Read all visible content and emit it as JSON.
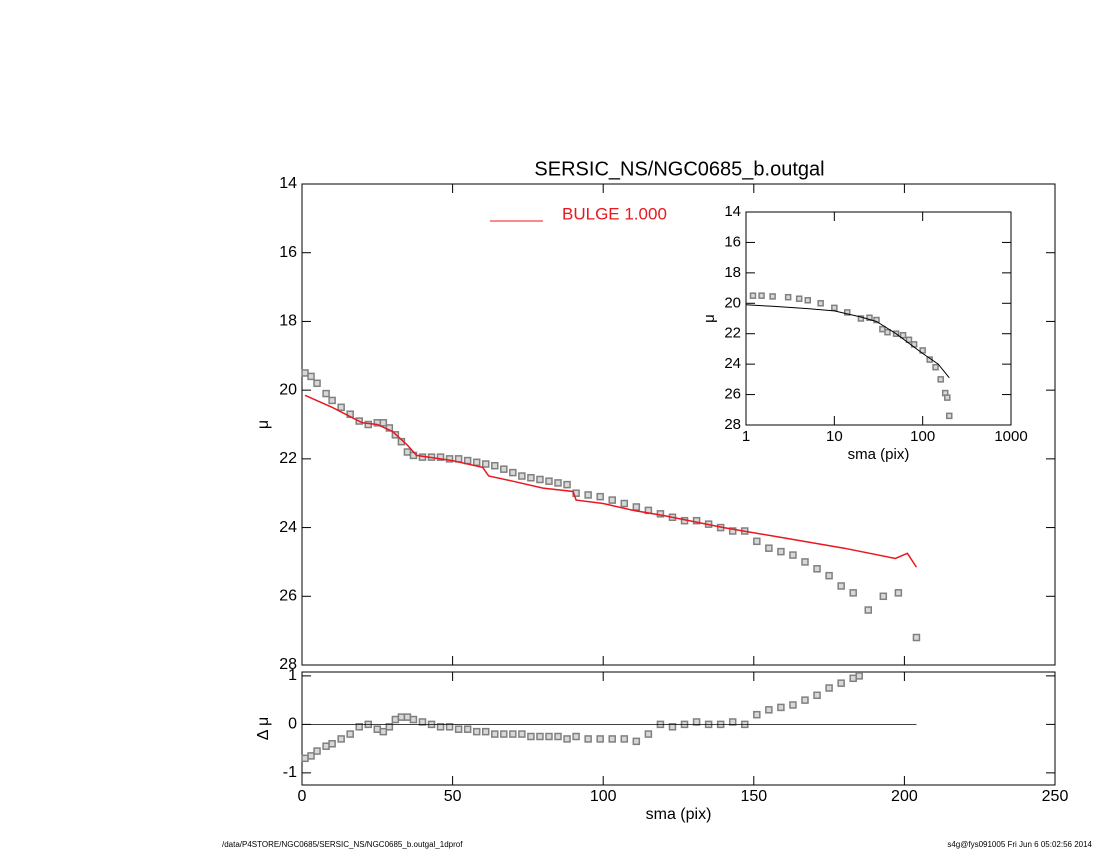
{
  "chart_data": [
    {
      "type": "line",
      "title": "SERSIC_NS/NGC0685_b.outgal",
      "ylabel": "μ",
      "xlim": [
        0,
        250
      ],
      "xticks": [
        0,
        50,
        100,
        150,
        200,
        250
      ],
      "show_xtick_labels": false,
      "ylim": [
        28,
        14
      ],
      "yticks": [
        14,
        16,
        18,
        20,
        22,
        24,
        26,
        28
      ],
      "legend": "top",
      "series": [
        {
          "name": null,
          "mode": "markers",
          "color": "#808080",
          "x": [
            1,
            3,
            5,
            8,
            10,
            13,
            16,
            19,
            22,
            25,
            27,
            29,
            31,
            33,
            35,
            37,
            40,
            43,
            46,
            49,
            52,
            55,
            58,
            61,
            64,
            67,
            70,
            73,
            76,
            79,
            82,
            85,
            88,
            91,
            95,
            99,
            103,
            107,
            111,
            115,
            119,
            123,
            127,
            131,
            135,
            139,
            143,
            147,
            151,
            155,
            159,
            163,
            167,
            171,
            175,
            179,
            183,
            188,
            193,
            198,
            204
          ],
          "values": [
            19.5,
            19.6,
            19.8,
            20.1,
            20.3,
            20.5,
            20.7,
            20.9,
            21.0,
            20.95,
            20.95,
            21.1,
            21.3,
            21.5,
            21.8,
            21.9,
            21.95,
            21.95,
            21.95,
            22.0,
            22.0,
            22.05,
            22.1,
            22.15,
            22.2,
            22.3,
            22.4,
            22.5,
            22.55,
            22.6,
            22.65,
            22.7,
            22.75,
            23.0,
            23.05,
            23.1,
            23.2,
            23.3,
            23.4,
            23.5,
            23.6,
            23.7,
            23.8,
            23.8,
            23.9,
            24.0,
            24.1,
            24.1,
            24.4,
            24.6,
            24.7,
            24.8,
            25.0,
            25.2,
            25.4,
            25.7,
            25.9,
            26.4,
            26.0,
            25.9,
            27.2
          ]
        },
        {
          "name": "BULGE  1.000",
          "mode": "line",
          "color": "#e8181e",
          "x": [
            1,
            10,
            20,
            25,
            30,
            35,
            38,
            50,
            60,
            62,
            70,
            80,
            90,
            91,
            100,
            110,
            120,
            140,
            160,
            180,
            197,
            201,
            204
          ],
          "values": [
            20.15,
            20.5,
            20.95,
            21.0,
            21.2,
            21.6,
            21.9,
            22.05,
            22.25,
            22.5,
            22.65,
            22.85,
            22.95,
            23.2,
            23.3,
            23.5,
            23.65,
            24.0,
            24.3,
            24.6,
            24.9,
            24.75,
            25.15
          ]
        }
      ]
    },
    {
      "type": "line",
      "xlabel": "sma (pix)",
      "ylabel": "Δ μ",
      "xlim": [
        0,
        250
      ],
      "xticks": [
        0,
        50,
        100,
        150,
        200,
        250
      ],
      "show_xtick_labels": true,
      "ylim": [
        -1.25,
        1.08
      ],
      "yticks": [
        -1,
        0,
        1
      ],
      "hline": 0,
      "series": [
        {
          "name": null,
          "mode": "markers",
          "color": "#808080",
          "x": [
            1,
            3,
            5,
            8,
            10,
            13,
            16,
            19,
            22,
            25,
            27,
            29,
            31,
            33,
            35,
            37,
            40,
            43,
            46,
            49,
            52,
            55,
            58,
            61,
            64,
            67,
            70,
            73,
            76,
            79,
            82,
            85,
            88,
            91,
            95,
            99,
            103,
            107,
            111,
            115,
            119,
            123,
            127,
            131,
            135,
            139,
            143,
            147,
            151,
            155,
            159,
            163,
            167,
            171,
            175,
            179,
            183,
            185
          ],
          "values": [
            -0.7,
            -0.65,
            -0.55,
            -0.45,
            -0.4,
            -0.3,
            -0.2,
            -0.05,
            0.0,
            -0.1,
            -0.15,
            -0.05,
            0.1,
            0.15,
            0.15,
            0.1,
            0.05,
            0.0,
            -0.05,
            -0.05,
            -0.1,
            -0.1,
            -0.15,
            -0.15,
            -0.2,
            -0.2,
            -0.2,
            -0.2,
            -0.25,
            -0.25,
            -0.25,
            -0.25,
            -0.3,
            -0.25,
            -0.3,
            -0.3,
            -0.3,
            -0.3,
            -0.35,
            -0.2,
            0.0,
            -0.05,
            0.0,
            0.05,
            0.0,
            0.0,
            0.05,
            0.0,
            0.2,
            0.3,
            0.35,
            0.4,
            0.5,
            0.6,
            0.75,
            0.85,
            0.95,
            1.0
          ]
        }
      ]
    },
    {
      "type": "line",
      "xlabel": "sma (pix)",
      "ylabel": "μ",
      "xlog": true,
      "xlim": [
        1,
        1000
      ],
      "xticks": [
        1,
        10,
        100,
        1000
      ],
      "show_xtick_labels": true,
      "ylim": [
        28,
        14
      ],
      "yticks": [
        14,
        16,
        18,
        20,
        22,
        24,
        26,
        28
      ],
      "series": [
        {
          "name": null,
          "mode": "markers",
          "color": "#808080",
          "x": [
            1.2,
            1.5,
            2,
            3,
            4,
            5,
            7,
            10,
            14,
            20,
            25,
            30,
            35,
            40,
            50,
            60,
            70,
            80,
            100,
            120,
            140,
            160,
            180,
            190,
            200
          ],
          "values": [
            19.5,
            19.5,
            19.55,
            19.6,
            19.7,
            19.8,
            20.0,
            20.3,
            20.6,
            21.0,
            20.95,
            21.1,
            21.7,
            21.9,
            22.0,
            22.1,
            22.4,
            22.7,
            23.1,
            23.7,
            24.2,
            25.0,
            25.9,
            26.2,
            27.4
          ]
        },
        {
          "name": null,
          "mode": "line",
          "color": "#000000",
          "x": [
            1,
            2,
            5,
            10,
            20,
            30,
            50,
            100,
            150,
            200
          ],
          "values": [
            20.1,
            20.2,
            20.35,
            20.5,
            20.9,
            21.2,
            22.0,
            23.3,
            24.0,
            24.9
          ]
        }
      ]
    }
  ],
  "footer": {
    "left": "/data/P4STORE/NGC0685/SERSIC_NS/NGC0685_b.outgal_1dprof",
    "right": "s4g@fys091005  Fri Jun  6 05:02:56 2014"
  }
}
